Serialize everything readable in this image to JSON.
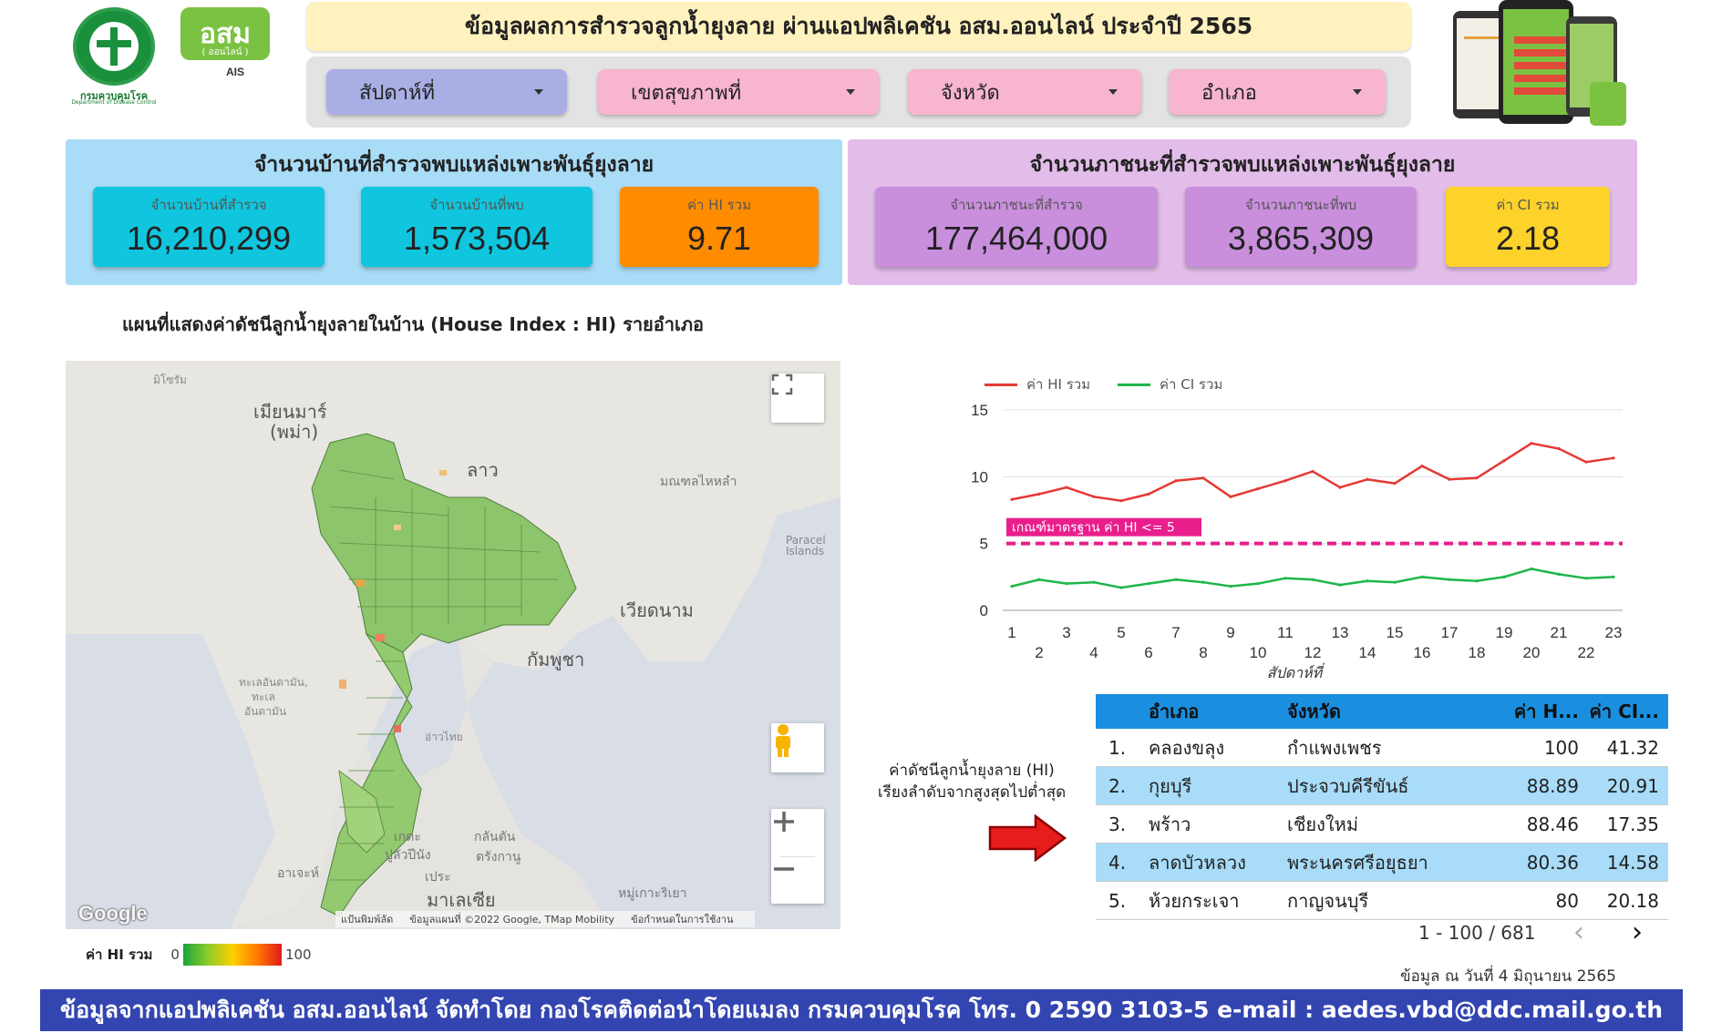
{
  "header": {
    "logo_ddc_caption": "กรมควบคุมโรค",
    "logo_ddc_caption_en": "Department of Disease Control",
    "logo_osm_text": "อสม",
    "logo_osm_sub": "( ออนไลน์ )",
    "logo_ais": "AIS",
    "title": "ข้อมูลผลการสำรวจลูกน้ำยุงลาย ผ่านแอปพลิเคชัน อสม.ออนไลน์ ประจำปี 2565"
  },
  "filters": {
    "week_label": "สัปดาห์ที่",
    "region_label": "เขตสุขภาพที่",
    "province_label": "จังหวัด",
    "district_label": "อำเภอ"
  },
  "houses": {
    "title": "จำนวนบ้านที่สำรวจพบแหล่งเพาะพันธุ์ยุงลาย",
    "surveyed_label": "จำนวนบ้านที่สำรวจ",
    "surveyed_value": "16,210,299",
    "found_label": "จำนวนบ้านที่พบ",
    "found_value": "1,573,504",
    "hi_label": "ค่า HI รวม",
    "hi_value": "9.71"
  },
  "containers": {
    "title": "จำนวนภาชนะที่สำรวจพบแหล่งเพาะพันธุ์ยุงลาย",
    "surveyed_label": "จำนวนภาชนะที่สำรวจ",
    "surveyed_value": "177,464,000",
    "found_label": "จำนวนภาชนะที่พบ",
    "found_value": "3,865,309",
    "ci_label": "ค่า CI รวม",
    "ci_value": "2.18"
  },
  "map": {
    "title": "แผนที่แสดงค่าดัชนีลูกน้ำยุงลายในบ้าน (House Index : HI) รายอำเภอ",
    "labels": {
      "mizoram": "มิโซรัม",
      "myanmar": "เมียนมาร์",
      "myanmar2": "(พม่า)",
      "laos": "ลาว",
      "hainan": "มณฑลไหหลำ",
      "paracel": "Paracel",
      "paracel2": "Islands",
      "vietnam": "เวียดนาม",
      "cambodia": "กัมพูชา",
      "andaman": "ทะเลอันดามัน",
      "andaman_a": "ทะเลอันดามัน,",
      "andaman_b": "ทะเล",
      "andaman_c": "อันดามัน",
      "gulf": "อ่าวไทย",
      "kedah": "เกดะ",
      "penang": "ปูลัวปีนัง",
      "terengganu": "ตรังกานู",
      "kelantan": "กลันตัน",
      "aceh": "อาเจะห์",
      "perak": "เประ",
      "malaysia": "มาเลเซีย",
      "islands": "หมู่เกาะริเยา"
    },
    "google": "Google",
    "attrib_shortcuts": "แป้นพิมพ์ลัด",
    "attrib_data": "ข้อมูลแผนที่ ©2022 Google, TMap Mobility",
    "attrib_terms": "ข้อกำหนดในการใช้งาน",
    "fullscreen_icon": "fullscreen-icon",
    "pegman_icon": "pegman-icon"
  },
  "legend": {
    "label": "ค่า HI รวม",
    "min": "0",
    "max": "100"
  },
  "chart_data": {
    "type": "line",
    "title": "",
    "xlabel": "สัปดาห์ที่",
    "ylabel": "",
    "x": [
      1,
      2,
      3,
      4,
      5,
      6,
      7,
      8,
      9,
      10,
      11,
      12,
      13,
      14,
      15,
      16,
      17,
      18,
      19,
      20,
      21,
      22,
      23
    ],
    "ylim": [
      0,
      15
    ],
    "yticks": [
      0,
      5,
      10,
      15
    ],
    "series": [
      {
        "name": "ค่า HI รวม",
        "color": "#e53935",
        "values": [
          8.3,
          8.7,
          9.2,
          8.5,
          8.2,
          8.7,
          9.7,
          9.9,
          8.5,
          9.1,
          9.7,
          10.4,
          9.2,
          9.8,
          9.5,
          10.8,
          9.8,
          9.9,
          11.2,
          12.5,
          12.1,
          11.1,
          11.4
        ]
      },
      {
        "name": "ค่า CI รวม",
        "color": "#1eb64a",
        "values": [
          1.8,
          2.3,
          2.0,
          2.1,
          1.7,
          2.0,
          2.3,
          2.1,
          1.8,
          2.0,
          2.4,
          2.3,
          1.9,
          2.2,
          2.1,
          2.5,
          2.3,
          2.2,
          2.5,
          3.1,
          2.7,
          2.4,
          2.5
        ]
      }
    ],
    "threshold": {
      "value": 5,
      "label": "เกณฑ์มาตรฐาน ค่า HI <= 5",
      "color": "#e91e8c"
    },
    "grid": true,
    "legend_position": "top-left"
  },
  "ranking": {
    "note_line1": "ค่าดัชนีลูกน้ำยุงลาย (HI)",
    "note_line2": "เรียงลำดับจากสูงสุดไปต่ำสุด",
    "headers": {
      "district": "อำเภอ",
      "province": "จังหวัด",
      "hi": "ค่า H...",
      "ci": "ค่า CI..."
    },
    "rows": [
      {
        "rank": "1.",
        "district": "คลองขลุง",
        "province": "กำแพงเพชร",
        "hi": "100",
        "ci": "41.32"
      },
      {
        "rank": "2.",
        "district": "กุยบุรี",
        "province": "ประจวบคีรีขันธ์",
        "hi": "88.89",
        "ci": "20.91"
      },
      {
        "rank": "3.",
        "district": "พร้าว",
        "province": "เชียงใหม่",
        "hi": "88.46",
        "ci": "17.35"
      },
      {
        "rank": "4.",
        "district": "ลาดบัวหลวง",
        "province": "พระนครศรีอยุธยา",
        "hi": "80.36",
        "ci": "14.58"
      },
      {
        "rank": "5.",
        "district": "ห้วยกระเจา",
        "province": "กาญจนบุรี",
        "hi": "80",
        "ci": "20.18"
      }
    ],
    "pager": "1 - 100 / 681",
    "prev": "‹",
    "next": "›",
    "as_of": "ข้อมูล ณ วันที่ 4 มิถุนายน 2565"
  },
  "footer": {
    "text": "ข้อมูลจากแอปพลิเคชัน อสม.ออนไลน์ จัดทำโดย กองโรคติดต่อนำโดยแมลง กรมควบคุมโรค โทร. 0 2590 3103-5 e-mail : aedes.vbd@ddc.mail.go.th"
  }
}
